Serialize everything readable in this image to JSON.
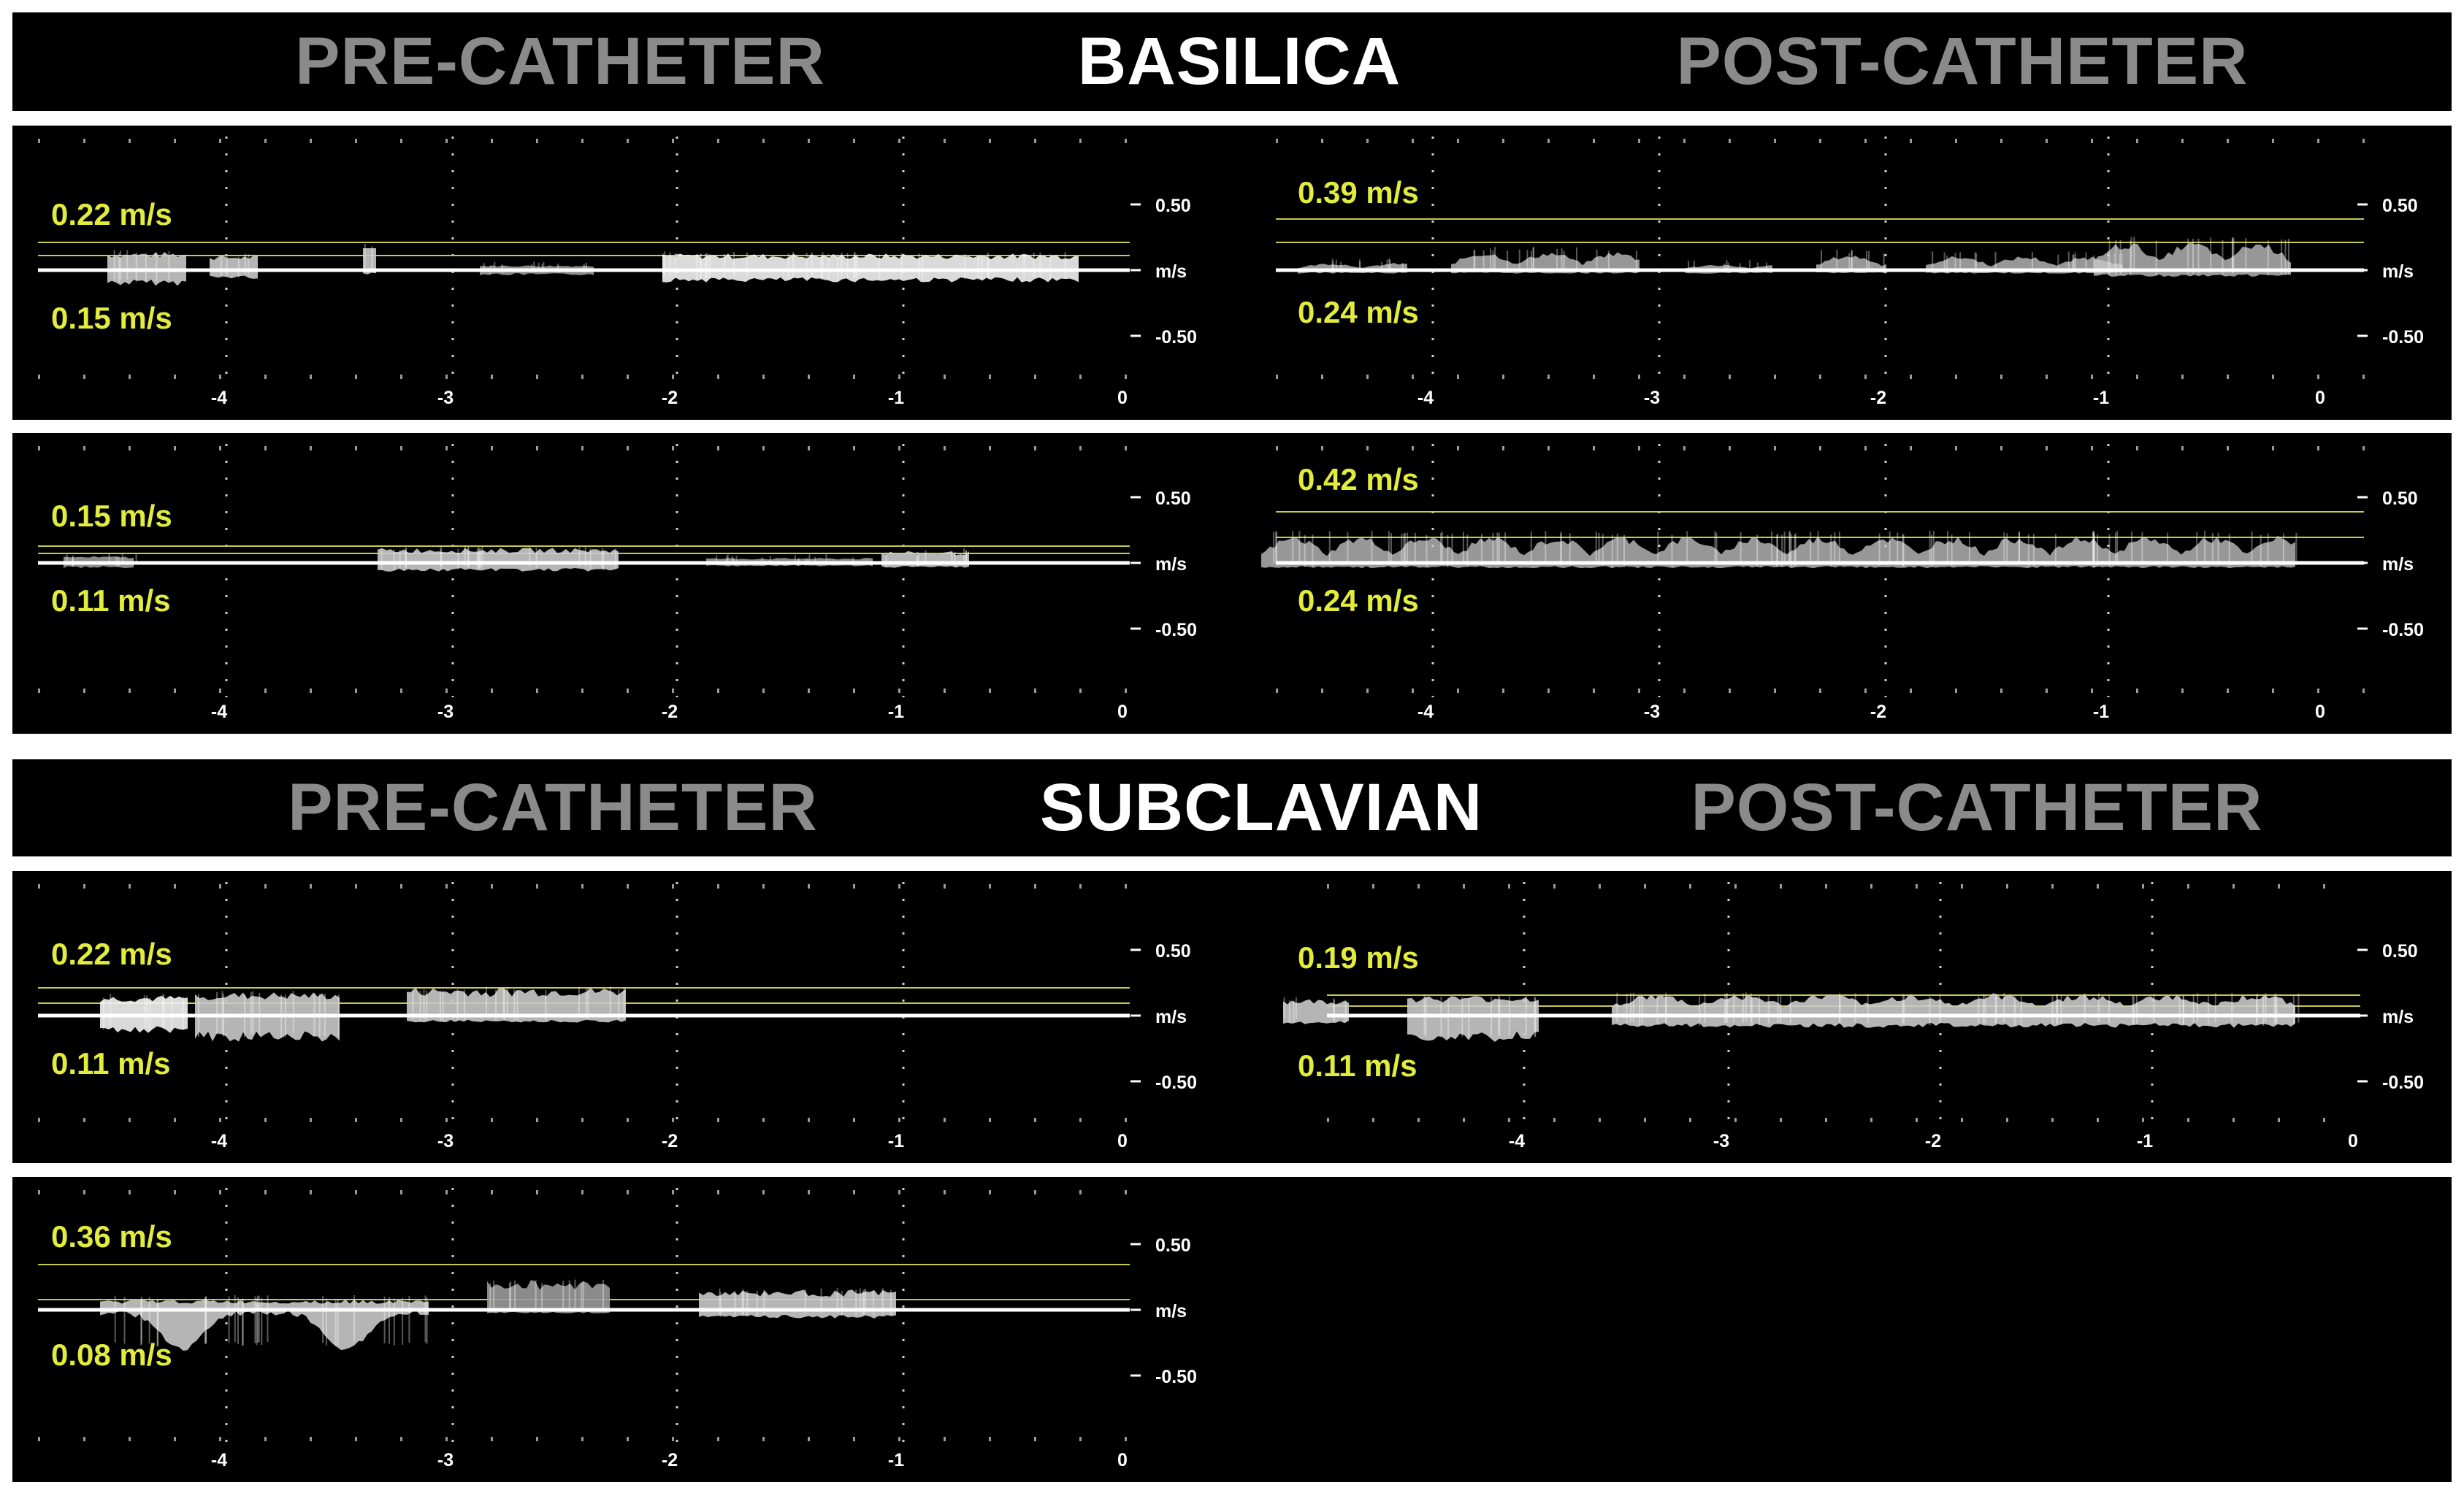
{
  "sections": [
    {
      "pre_label": "PRE-CATHETER",
      "title": "BASILICA",
      "post_label": "POST-CATHETER"
    },
    {
      "pre_label": "PRE-CATHETER",
      "title": "SUBCLAVIAN",
      "post_label": "POST-CATHETER"
    }
  ],
  "axis": {
    "unit": "m/s",
    "y_ticks": [
      "0.50",
      "m/s",
      "-0.50"
    ],
    "x_ticks": [
      "-4",
      "-3",
      "-2",
      "-1",
      "0"
    ]
  },
  "panels": {
    "basilica_pre_1": {
      "upper": "0.22 m/s",
      "lower": "0.15 m/s"
    },
    "basilica_post_1": {
      "upper": "0.39 m/s",
      "lower": "0.24 m/s"
    },
    "basilica_pre_2": {
      "upper": "0.15 m/s",
      "lower": "0.11 m/s"
    },
    "basilica_post_2": {
      "upper": "0.42 m/s",
      "lower": "0.24 m/s"
    },
    "subclavian_pre_1": {
      "upper": "0.22 m/s",
      "lower": "0.11 m/s"
    },
    "subclavian_post_1": {
      "upper": "0.19 m/s",
      "lower": "0.11 m/s"
    },
    "subclavian_pre_2": {
      "upper": "0.36 m/s",
      "lower": "0.08 m/s"
    }
  },
  "colors": {
    "banner_bg": "#000000",
    "pre_post_text": "#8a8a8a",
    "title_text": "#ffffff",
    "velocity_label": "#e2ec3c",
    "marker_line": "#c8c84a"
  }
}
